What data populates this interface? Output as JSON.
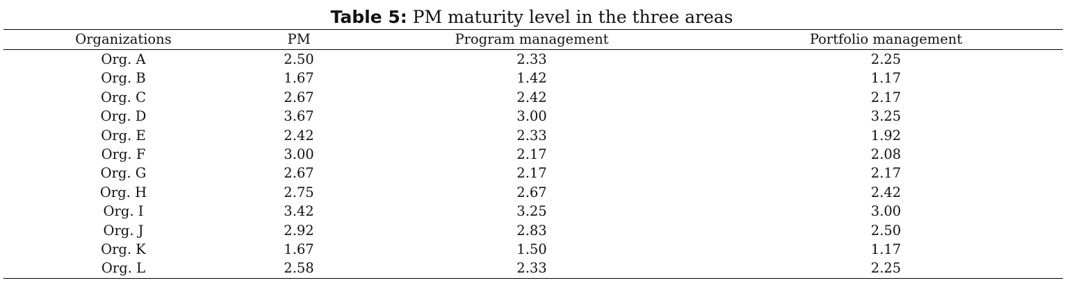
{
  "caption": {
    "label": "Table 5:",
    "text": " PM maturity level in the three areas"
  },
  "table": {
    "headers": [
      "Organizations",
      "PM",
      "Program management",
      "Portfolio management"
    ],
    "rows": [
      [
        "Org. A",
        "2.50",
        "2.33",
        "2.25"
      ],
      [
        "Org. B",
        "1.67",
        "1.42",
        "1.17"
      ],
      [
        "Org. C",
        "2.67",
        "2.42",
        "2.17"
      ],
      [
        "Org. D",
        "3.67",
        "3.00",
        "3.25"
      ],
      [
        "Org. E",
        "2.42",
        "2.33",
        "1.92"
      ],
      [
        "Org. F",
        "3.00",
        "2.17",
        "2.08"
      ],
      [
        "Org. G",
        "2.67",
        "2.17",
        "2.17"
      ],
      [
        "Org. H",
        "2.75",
        "2.67",
        "2.42"
      ],
      [
        "Org. I",
        "3.42",
        "3.25",
        "3.00"
      ],
      [
        "Org. J",
        "2.92",
        "2.83",
        "2.50"
      ],
      [
        "Org. K",
        "1.67",
        "1.50",
        "1.17"
      ],
      [
        "Org. L",
        "2.58",
        "2.33",
        "2.25"
      ]
    ]
  }
}
